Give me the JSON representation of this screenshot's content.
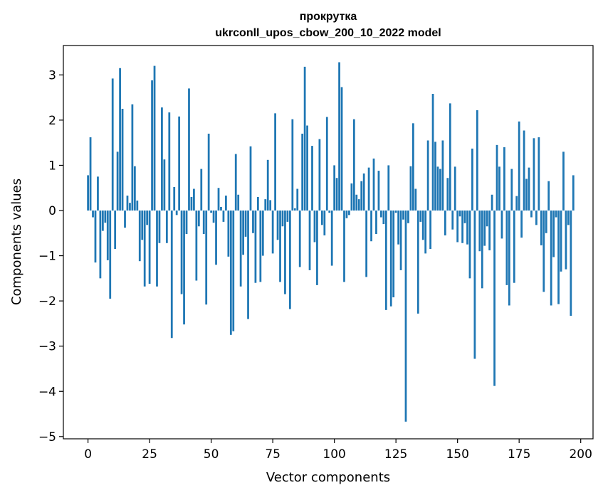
{
  "chart_data": {
    "type": "bar",
    "title_line1": "прокрутка",
    "title_line2": "ukrconll_upos_cbow_200_10_2022 model",
    "xlabel": "Vector components",
    "ylabel": "Components values",
    "xlim": [
      -10,
      205
    ],
    "ylim": [
      -5.05,
      3.65
    ],
    "xticks": [
      0,
      25,
      50,
      75,
      100,
      125,
      150,
      175,
      200
    ],
    "yticks": [
      -5,
      -4,
      -3,
      -2,
      -1,
      0,
      1,
      2,
      3
    ],
    "bar_color": "#1f77b4",
    "values": [
      0.78,
      1.62,
      -0.15,
      -1.15,
      0.75,
      -1.5,
      -0.45,
      -0.27,
      -1.1,
      -1.95,
      2.92,
      -0.85,
      1.3,
      3.15,
      2.25,
      -0.38,
      0.33,
      0.17,
      2.35,
      0.98,
      0.22,
      -1.12,
      -0.65,
      -1.68,
      -0.32,
      -1.62,
      2.88,
      3.2,
      -1.68,
      -0.72,
      2.28,
      1.13,
      -0.72,
      2.17,
      -2.82,
      0.52,
      -0.1,
      2.08,
      -1.85,
      -2.52,
      -0.52,
      2.7,
      0.3,
      0.48,
      -1.55,
      -0.35,
      0.92,
      -0.52,
      -2.08,
      1.7,
      -0.05,
      -0.27,
      -1.2,
      0.5,
      0.08,
      -0.25,
      0.33,
      -1.02,
      -2.75,
      -2.67,
      1.25,
      0.35,
      -1.68,
      -0.98,
      -0.58,
      -2.4,
      1.42,
      -0.5,
      -1.6,
      0.3,
      -1.58,
      -1.0,
      0.25,
      1.12,
      0.23,
      -0.95,
      2.15,
      -0.65,
      -1.58,
      -0.35,
      -1.85,
      -0.25,
      -2.18,
      2.02,
      0.05,
      0.48,
      -1.25,
      1.7,
      3.18,
      1.88,
      -1.32,
      1.43,
      -0.7,
      -1.65,
      1.58,
      -0.32,
      -0.55,
      2.07,
      -0.05,
      -1.22,
      1.0,
      0.72,
      3.28,
      2.73,
      -1.58,
      -0.17,
      -0.1,
      0.6,
      2.02,
      0.35,
      0.25,
      0.65,
      0.82,
      -1.47,
      0.95,
      -0.68,
      1.15,
      -0.52,
      0.88,
      -0.15,
      -0.3,
      -2.2,
      1.0,
      -2.12,
      -1.92,
      -0.05,
      -0.75,
      -1.32,
      -0.2,
      -4.67,
      -0.28,
      0.98,
      1.93,
      0.48,
      -2.28,
      -0.25,
      -0.65,
      -0.95,
      1.55,
      -0.85,
      2.58,
      1.52,
      0.97,
      0.92,
      1.55,
      -0.55,
      0.72,
      2.37,
      -0.42,
      0.97,
      -0.7,
      -0.13,
      -0.72,
      -0.28,
      -0.75,
      -1.5,
      1.37,
      -3.28,
      2.22,
      -0.9,
      -1.72,
      -0.78,
      -0.35,
      -0.88,
      0.35,
      -3.88,
      1.45,
      0.97,
      -0.62,
      1.4,
      -1.65,
      -2.1,
      0.92,
      -1.6,
      0.32,
      1.97,
      -0.6,
      1.77,
      0.7,
      0.95,
      -0.15,
      1.6,
      -0.32,
      1.62,
      -0.77,
      -1.8,
      -0.5,
      0.65,
      -2.1,
      -1.03,
      -0.15,
      -2.07,
      -1.35,
      1.3,
      -1.3,
      -0.32,
      -2.33,
      0.78
    ]
  }
}
